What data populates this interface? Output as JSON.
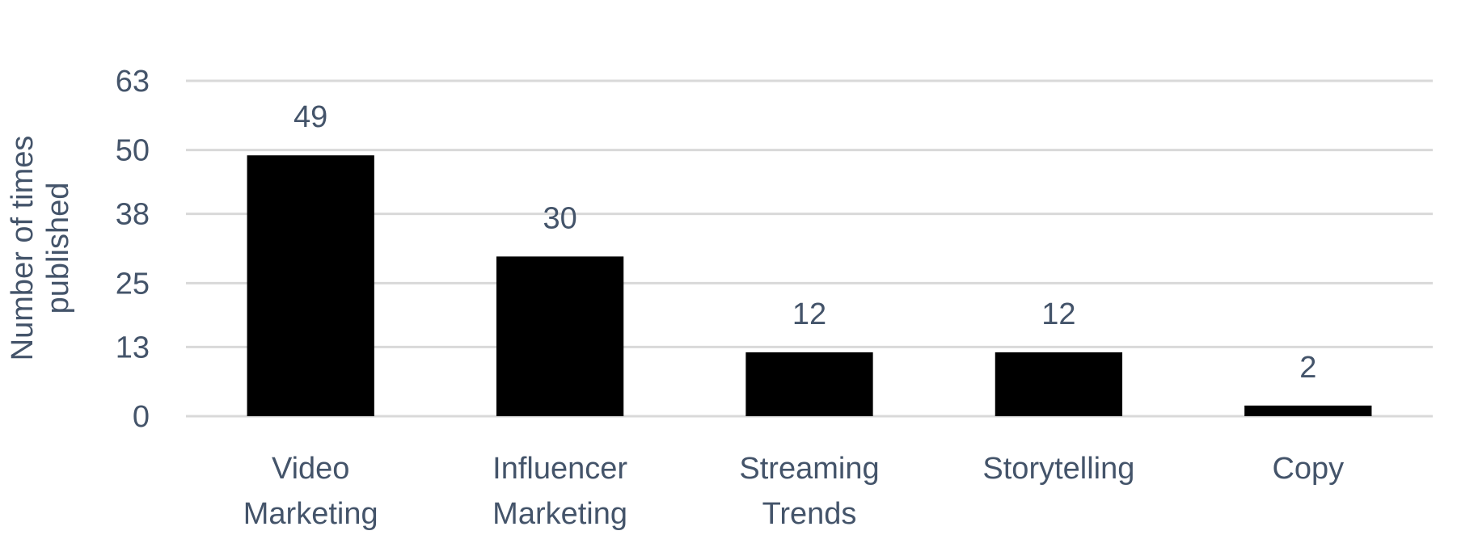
{
  "chart_data": {
    "type": "bar",
    "categories": [
      [
        "Video",
        "Marketing"
      ],
      [
        "Influencer",
        "Marketing"
      ],
      [
        "Streaming",
        "Trends"
      ],
      [
        "Storytelling"
      ],
      [
        "Copy"
      ]
    ],
    "values": [
      49,
      30,
      12,
      12,
      2
    ],
    "title": "",
    "xlabel": "",
    "ylabel": [
      "Number of times",
      "published"
    ],
    "yticks": [
      "0",
      "13",
      "25",
      "38",
      "50",
      "63"
    ],
    "ylim": [
      0,
      63
    ],
    "grid": true,
    "legend": "none",
    "colors": {
      "bar": "#000000",
      "text": "#44546a",
      "grid": "#d9d9d9"
    }
  }
}
